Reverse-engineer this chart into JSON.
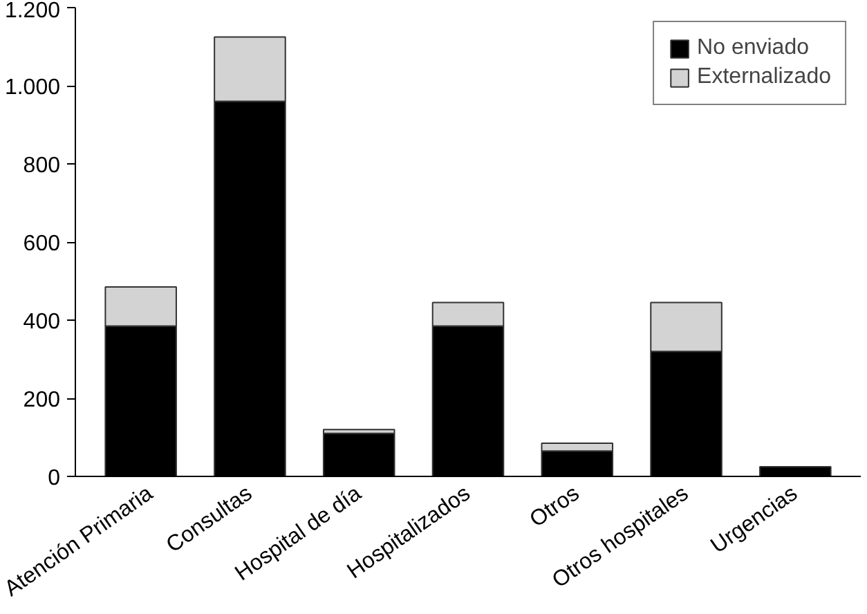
{
  "chart_data": {
    "type": "bar",
    "stacked": true,
    "categories": [
      "Atención Primaria",
      "Consultas",
      "Hospital de día",
      "Hospitalizados",
      "Otros",
      "Otros hospitales",
      "Urgencias"
    ],
    "series": [
      {
        "name": "No enviado",
        "color": "#000000",
        "values": [
          385,
          960,
          110,
          385,
          65,
          320,
          25
        ]
      },
      {
        "name": "Externalizado",
        "color": "#d3d3d3",
        "values": [
          100,
          165,
          10,
          60,
          20,
          125,
          null
        ]
      }
    ],
    "ylim": [
      0,
      1200
    ],
    "yticks": [
      0,
      {
        "value": 200,
        "label": "200"
      },
      {
        "value": 400,
        "label": "400"
      },
      {
        "value": 600,
        "label": "600"
      },
      {
        "value": 800,
        "label": "800"
      },
      {
        "value": 1000,
        "label": "1.000"
      },
      {
        "value": 1200,
        "label": "1.200"
      }
    ],
    "grid": false,
    "legend": "top right"
  }
}
